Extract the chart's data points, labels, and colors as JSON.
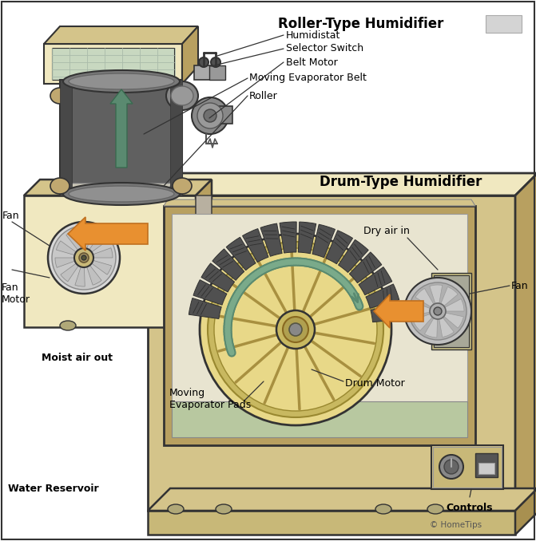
{
  "labels": {
    "roller_type_title": "Roller-Type Humidifier",
    "drum_type_title": "Drum-Type Humidifier",
    "humidistat": "Humidistat",
    "selector_switch": "Selector Switch",
    "belt_motor": "Belt Motor",
    "moving_evaporator_belt": "Moving Evaporator Belt",
    "roller": "Roller",
    "fan_left": "Fan",
    "fan_motor": "Fan\nMotor",
    "moist_air_out": "Moist air out",
    "water_reservoir": "Water Reservoir",
    "dry_air_in": "Dry air in",
    "fan_right": "Fan",
    "moving_evaporator_pads": "Moving\nEvaporator Pads",
    "drum_motor": "Drum Motor",
    "controls": "Controls",
    "copyright": "© HomeTips"
  },
  "colors": {
    "bg": "#ffffff",
    "tan_light": "#f0e8c0",
    "tan_mid": "#d4c48a",
    "tan_dark": "#b8a060",
    "tan_body": "#c8b878",
    "tan_darker": "#a89050",
    "gray_box": "#cccccc",
    "gray_mid": "#999999",
    "gray_dark": "#555555",
    "gray_light": "#e0e0e0",
    "belt_dark": "#606060",
    "belt_darker": "#484848",
    "belt_mid": "#787878",
    "drum_pad": "#505050",
    "drum_pad_dark": "#303030",
    "drum_wheel_light": "#e8d888",
    "drum_wheel_mid": "#c8b860",
    "drum_wheel_dark": "#a89040",
    "roller_tan": "#c0a870",
    "outline": "#333333",
    "arrow_green": "#5a8a70",
    "arrow_green_dark": "#3a6a50",
    "arrow_orange": "#e89030",
    "arrow_orange_light": "#f0b060",
    "arrow_orange_dark": "#c07020",
    "fan_white": "#e8e8e8",
    "fan_gray": "#b0b0b0",
    "fan_dark": "#707070",
    "motor_gray": "#888888",
    "motor_dark": "#505050",
    "inner_bg": "#d0cdb8",
    "inner_light": "#e8e4d0",
    "water_bg": "#c0c8a0",
    "connector_gray": "#909090",
    "roller_body": "#707070",
    "drum_bottom": "#b8a870"
  }
}
